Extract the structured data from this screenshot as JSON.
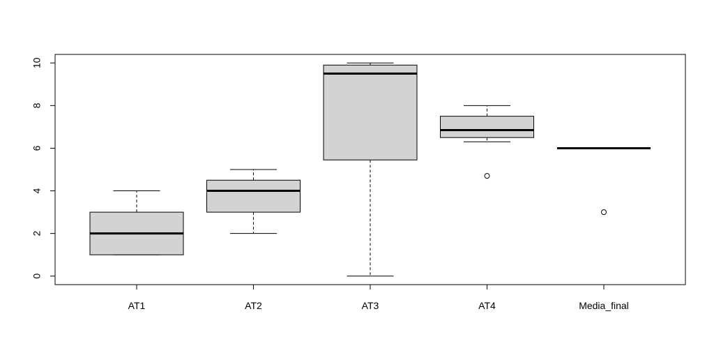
{
  "chart_data": {
    "type": "boxplot",
    "title": "",
    "xlabel": "",
    "ylabel": "",
    "ylim": [
      -0.4,
      10.4
    ],
    "yticks": [
      0,
      2,
      4,
      6,
      8,
      10
    ],
    "grid": false,
    "categories": [
      "AT1",
      "AT2",
      "AT3",
      "AT4",
      "Media_final"
    ],
    "box_fill": "#d3d3d3",
    "boxes": [
      {
        "label": "AT1",
        "whisker_low": 1,
        "q1": 1,
        "median": 2,
        "q3": 3,
        "whisker_high": 4,
        "outliers": []
      },
      {
        "label": "AT2",
        "whisker_low": 2,
        "q1": 3,
        "median": 4,
        "q3": 4.5,
        "whisker_high": 5,
        "outliers": []
      },
      {
        "label": "AT3",
        "whisker_low": 0,
        "q1": 5.45,
        "median": 9.5,
        "q3": 9.9,
        "whisker_high": 10,
        "outliers": []
      },
      {
        "label": "AT4",
        "whisker_low": 6.3,
        "q1": 6.5,
        "median": 6.85,
        "q3": 7.5,
        "whisker_high": 8,
        "outliers": [
          4.7
        ]
      },
      {
        "label": "Media_final",
        "whisker_low": 6,
        "q1": 6,
        "median": 6,
        "q3": 6,
        "whisker_high": 6,
        "outliers": [
          3
        ]
      }
    ]
  }
}
